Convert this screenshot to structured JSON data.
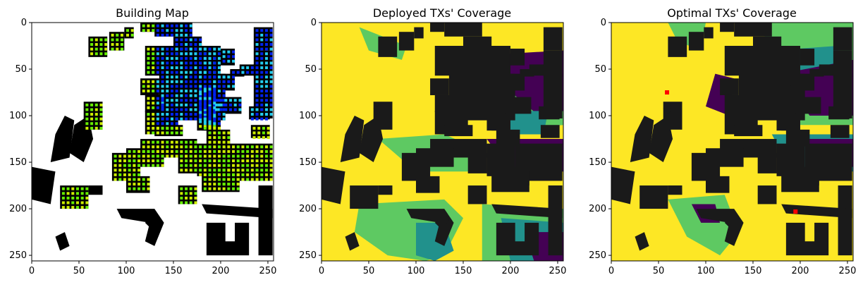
{
  "panels": [
    {
      "id": "building_map",
      "title": "Building Map",
      "colors": {
        "background": "#ffffff",
        "building": "#000000",
        "tx_dots": [
          "#0022ee",
          "#22ccee",
          "#66ee00",
          "#ccee00"
        ]
      }
    },
    {
      "id": "deployed_coverage",
      "title": "Deployed TXs' Coverage",
      "colors": {
        "covered": "#fde725",
        "level_2": "#5ec962",
        "level_1": "#21918c",
        "uncovered": "#440154",
        "building": "#1a1a1a"
      }
    },
    {
      "id": "optimal_coverage",
      "title": "Optimal TXs' Coverage",
      "colors": {
        "covered": "#fde725",
        "level_2": "#5ec962",
        "level_1": "#21918c",
        "uncovered": "#440154",
        "building": "#1a1a1a",
        "tx_marker": "#ff0000"
      }
    }
  ],
  "chart_data": [
    {
      "type": "heatmap",
      "title": "Building Map",
      "xlim": [
        0,
        256
      ],
      "ylim": [
        256,
        0
      ],
      "xticks": [
        0,
        50,
        100,
        150,
        200,
        250
      ],
      "yticks": [
        0,
        50,
        100,
        150,
        200,
        250
      ],
      "grid": false
    },
    {
      "type": "heatmap",
      "title": "Deployed TXs' Coverage",
      "xlim": [
        0,
        256
      ],
      "ylim": [
        256,
        0
      ],
      "xticks": [
        0,
        50,
        100,
        150,
        200,
        250
      ],
      "yticks": [
        0,
        50,
        100,
        150,
        200,
        250
      ],
      "grid": false
    },
    {
      "type": "heatmap",
      "title": "Optimal TXs' Coverage",
      "xlim": [
        0,
        256
      ],
      "ylim": [
        256,
        0
      ],
      "xticks": [
        0,
        50,
        100,
        150,
        200,
        250
      ],
      "yticks": [
        0,
        50,
        100,
        150,
        200,
        250
      ],
      "grid": false,
      "tx_positions": [
        [
          59,
          75
        ],
        [
          195,
          203
        ]
      ]
    }
  ]
}
